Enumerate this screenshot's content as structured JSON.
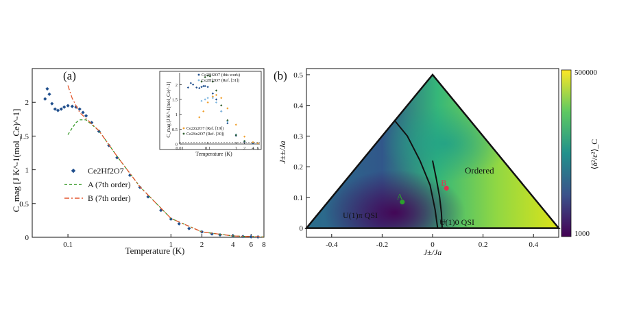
{
  "chart_data": [
    {
      "panel_label": "(a)",
      "type": "scatter",
      "xlabel": "Temperature (K)",
      "ylabel": "C_mag [J K^-1(mol_Ce)^-1]",
      "xscale": "log",
      "xlim": [
        0.045,
        8
      ],
      "ylim": [
        0,
        2.5
      ],
      "x_ticks": [
        0.1,
        1,
        2,
        4,
        6,
        8
      ],
      "x_tick_labels": [
        "0.1",
        "1",
        "2",
        "4",
        "6",
        "8"
      ],
      "y_ticks": [
        0,
        0.5,
        1,
        1.5,
        2
      ],
      "y_tick_labels": [
        "0",
        "0.5",
        "1",
        "1.5",
        "2"
      ],
      "legend_position": "center-left",
      "series": [
        {
          "name": "Ce2Hf2O7",
          "style": "diamond",
          "color": "#1f4e8c",
          "x": [
            0.06,
            0.063,
            0.066,
            0.07,
            0.075,
            0.08,
            0.086,
            0.092,
            0.1,
            0.11,
            0.12,
            0.13,
            0.14,
            0.15,
            0.17,
            0.2,
            0.25,
            0.3,
            0.4,
            0.5,
            0.6,
            0.8,
            1.0,
            1.2,
            1.5,
            2,
            2.5,
            3,
            4,
            5,
            6,
            7
          ],
          "y": [
            2.05,
            2.2,
            2.12,
            1.98,
            1.9,
            1.88,
            1.9,
            1.93,
            1.95,
            1.94,
            1.93,
            1.9,
            1.85,
            1.8,
            1.7,
            1.57,
            1.36,
            1.18,
            0.92,
            0.74,
            0.6,
            0.4,
            0.27,
            0.2,
            0.13,
            0.08,
            0.05,
            0.035,
            0.02,
            0.012,
            0.008,
            0.005
          ]
        },
        {
          "name": "A (7th order)",
          "style": "dashed",
          "color": "#3a9a2c",
          "x": [
            0.1,
            0.11,
            0.12,
            0.13,
            0.15,
            0.2,
            0.3,
            0.5,
            1,
            2,
            4,
            8
          ],
          "y": [
            1.52,
            1.62,
            1.7,
            1.74,
            1.74,
            1.58,
            1.2,
            0.75,
            0.28,
            0.08,
            0.02,
            0.005
          ]
        },
        {
          "name": "B (7th order)",
          "style": "dashdot",
          "color": "#e4572e",
          "x": [
            0.1,
            0.105,
            0.11,
            0.12,
            0.13,
            0.15,
            0.2,
            0.3,
            0.5,
            1,
            2,
            4,
            8
          ],
          "y": [
            2.25,
            2.15,
            2.06,
            1.95,
            1.85,
            1.76,
            1.58,
            1.2,
            0.75,
            0.28,
            0.08,
            0.02,
            0.005
          ]
        }
      ],
      "inset": {
        "xlabel": "Temperature (K)",
        "ylabel": "C_mag [J K^-1(mol_Ce)^-1]",
        "xscale": "log",
        "xlim": [
          0.01,
          7
        ],
        "ylim": [
          0,
          2.4
        ],
        "x_tick_labels": [
          "0.01",
          "0.1",
          "1",
          "2",
          "4",
          "6"
        ],
        "y_tick_labels": [
          "0",
          "0.5",
          "1",
          "1.5",
          "2"
        ],
        "series": [
          {
            "name": "Ce2Hf2O7 (this work)",
            "color": "#1f4e8c",
            "x": [
              0.02,
              0.025,
              0.03,
              0.04,
              0.05,
              0.06,
              0.07,
              0.08,
              0.1,
              0.15,
              0.2,
              0.3,
              0.5,
              1,
              2,
              4,
              6
            ],
            "y": [
              1.9,
              2.05,
              2.0,
              1.9,
              1.88,
              1.92,
              1.95,
              1.95,
              1.92,
              1.7,
              1.5,
              1.1,
              0.7,
              0.28,
              0.08,
              0.02,
              0.01
            ]
          },
          {
            "name": "Ce2Hf2O7 (Ref. [31])",
            "color": "#7fb7e0",
            "x": [
              0.06,
              0.08,
              0.1,
              0.15,
              0.2,
              0.3,
              0.5,
              1,
              2
            ],
            "y": [
              1.45,
              1.5,
              1.55,
              1.55,
              1.4,
              1.1,
              0.75,
              0.32,
              0.1
            ]
          },
          {
            "name": "Ce2Zr2O7 (Ref. [19])",
            "color": "#f0a030",
            "x": [
              0.05,
              0.07,
              0.1,
              0.15,
              0.2,
              0.3,
              0.5,
              1,
              2,
              4,
              6
            ],
            "y": [
              0.9,
              1.1,
              1.4,
              1.6,
              1.65,
              1.55,
              1.2,
              0.65,
              0.25,
              0.06,
              0.02
            ]
          },
          {
            "name": "Ce2Sn2O7 (Ref. [30])",
            "color": "#2e5d2e",
            "x": [
              0.06,
              0.08,
              0.1,
              0.12,
              0.15,
              0.2,
              0.3,
              0.5,
              1,
              2
            ],
            "y": [
              2.1,
              2.25,
              2.3,
              2.28,
              2.1,
              1.8,
              1.3,
              0.8,
              0.3,
              0.1
            ]
          }
        ]
      }
    },
    {
      "panel_label": "(b)",
      "type": "heatmap",
      "xlabel": "J±/Ja",
      "ylabel": "J±±/Ja",
      "xlim": [
        -0.5,
        0.5
      ],
      "ylim": [
        -0.03,
        0.52
      ],
      "x_tick_labels": [
        "-0.4",
        "-0.2",
        "0",
        "0.2",
        "0.4"
      ],
      "y_tick_labels": [
        "0",
        "0.1",
        "0.2",
        "0.3",
        "0.4",
        "0.5"
      ],
      "colorbar": {
        "label": "⟨δ²/ε²⟩_C",
        "max_label": "500000",
        "min_label": "1000",
        "scale": "log",
        "colors": [
          "#440154",
          "#3b528b",
          "#21918c",
          "#5ec962",
          "#fde725"
        ]
      },
      "regions": [
        "Ordered",
        "U(1)π QSI",
        "U(1)0 QSI"
      ],
      "points": [
        {
          "name": "A",
          "x": -0.12,
          "y": 0.085,
          "color": "#2ca02c"
        },
        {
          "name": "B",
          "x": 0.055,
          "y": 0.13,
          "color": "#e0304f"
        }
      ],
      "triangle": {
        "apex": [
          0,
          0.5
        ],
        "left": [
          -0.5,
          0
        ],
        "right": [
          0.5,
          0
        ]
      },
      "phase_boundaries": [
        {
          "x": [
            -0.15,
            -0.1,
            -0.05,
            -0.01,
            0.01,
            0.02
          ],
          "y": [
            0.35,
            0.3,
            0.22,
            0.14,
            0.06,
            0.0
          ]
        },
        {
          "x": [
            0.0,
            0.015,
            0.028,
            0.035,
            0.038
          ],
          "y": [
            0.22,
            0.16,
            0.1,
            0.05,
            0.0
          ]
        }
      ]
    }
  ]
}
